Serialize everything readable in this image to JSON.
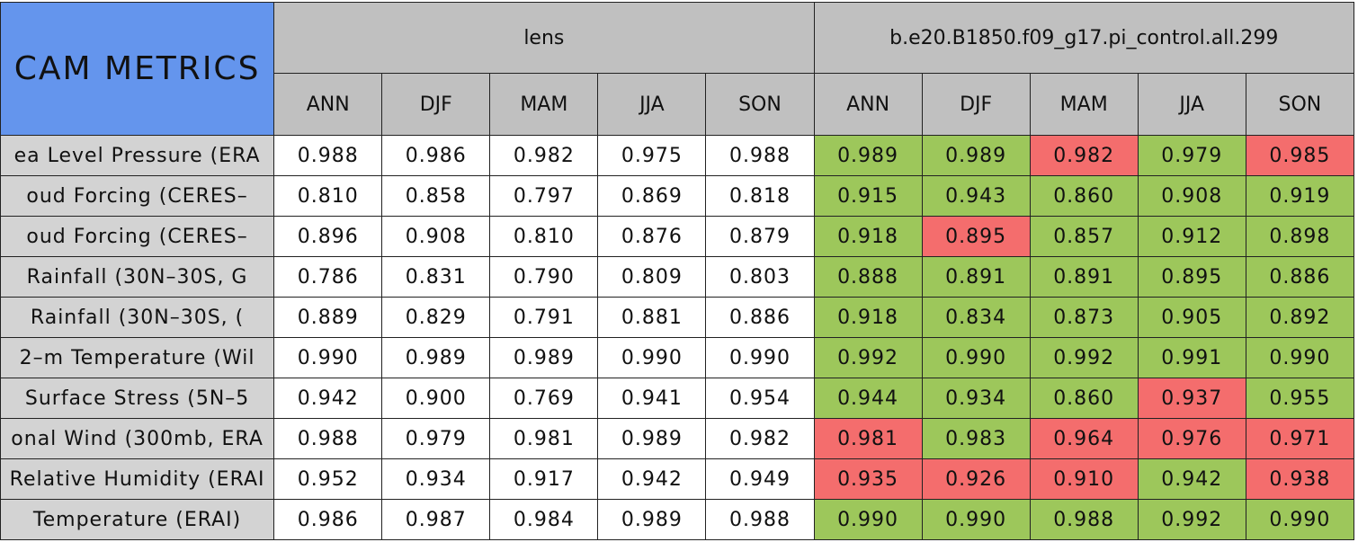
{
  "header": {
    "title": "CAM METRICS",
    "groups": [
      {
        "name": "lens",
        "seasons": [
          "ANN",
          "DJF",
          "MAM",
          "JJA",
          "SON"
        ]
      },
      {
        "name": "b.e20.B1850.f09_g17.pi_control.all.299",
        "seasons": [
          "ANN",
          "DJF",
          "MAM",
          "JJA",
          "SON"
        ]
      }
    ]
  },
  "table": {
    "rows": [
      {
        "label": "ea Level Pressure (ERA",
        "values": [
          "0.988",
          "0.986",
          "0.982",
          "0.975",
          "0.988",
          "0.989",
          "0.989",
          "0.982",
          "0.979",
          "0.985"
        ],
        "colors": [
          "#ffffff",
          "#ffffff",
          "#ffffff",
          "#ffffff",
          "#ffffff",
          "#9dc75b",
          "#9dc75b",
          "#f46d6d",
          "#9dc75b",
          "#f46d6d"
        ]
      },
      {
        "label": "oud Forcing (CERES–",
        "values": [
          "0.810",
          "0.858",
          "0.797",
          "0.869",
          "0.818",
          "0.915",
          "0.943",
          "0.860",
          "0.908",
          "0.919"
        ],
        "colors": [
          "#ffffff",
          "#ffffff",
          "#ffffff",
          "#ffffff",
          "#ffffff",
          "#9dc75b",
          "#9dc75b",
          "#9dc75b",
          "#9dc75b",
          "#9dc75b"
        ]
      },
      {
        "label": "oud Forcing (CERES–",
        "values": [
          "0.896",
          "0.908",
          "0.810",
          "0.876",
          "0.879",
          "0.918",
          "0.895",
          "0.857",
          "0.912",
          "0.898"
        ],
        "colors": [
          "#ffffff",
          "#ffffff",
          "#ffffff",
          "#ffffff",
          "#ffffff",
          "#9dc75b",
          "#f46d6d",
          "#9dc75b",
          "#9dc75b",
          "#9dc75b"
        ]
      },
      {
        "label": "Rainfall (30N–30S, G",
        "values": [
          "0.786",
          "0.831",
          "0.790",
          "0.809",
          "0.803",
          "0.888",
          "0.891",
          "0.891",
          "0.895",
          "0.886"
        ],
        "colors": [
          "#ffffff",
          "#ffffff",
          "#ffffff",
          "#ffffff",
          "#ffffff",
          "#9dc75b",
          "#9dc75b",
          "#9dc75b",
          "#9dc75b",
          "#9dc75b"
        ]
      },
      {
        "label": "Rainfall (30N–30S, (",
        "values": [
          "0.889",
          "0.829",
          "0.791",
          "0.881",
          "0.886",
          "0.918",
          "0.834",
          "0.873",
          "0.905",
          "0.892"
        ],
        "colors": [
          "#ffffff",
          "#ffffff",
          "#ffffff",
          "#ffffff",
          "#ffffff",
          "#9dc75b",
          "#9dc75b",
          "#9dc75b",
          "#9dc75b",
          "#9dc75b"
        ]
      },
      {
        "label": "2–m Temperature (Wil",
        "values": [
          "0.990",
          "0.989",
          "0.989",
          "0.990",
          "0.990",
          "0.992",
          "0.990",
          "0.992",
          "0.991",
          "0.990"
        ],
        "colors": [
          "#ffffff",
          "#ffffff",
          "#ffffff",
          "#ffffff",
          "#ffffff",
          "#9dc75b",
          "#9dc75b",
          "#9dc75b",
          "#9dc75b",
          "#9dc75b"
        ]
      },
      {
        "label": "Surface Stress (5N–5",
        "values": [
          "0.942",
          "0.900",
          "0.769",
          "0.941",
          "0.954",
          "0.944",
          "0.934",
          "0.860",
          "0.937",
          "0.955"
        ],
        "colors": [
          "#ffffff",
          "#ffffff",
          "#ffffff",
          "#ffffff",
          "#ffffff",
          "#9dc75b",
          "#9dc75b",
          "#9dc75b",
          "#f46d6d",
          "#9dc75b"
        ]
      },
      {
        "label": "onal Wind (300mb, ERA",
        "values": [
          "0.988",
          "0.979",
          "0.981",
          "0.989",
          "0.982",
          "0.981",
          "0.983",
          "0.964",
          "0.976",
          "0.971"
        ],
        "colors": [
          "#ffffff",
          "#ffffff",
          "#ffffff",
          "#ffffff",
          "#ffffff",
          "#f46d6d",
          "#9dc75b",
          "#f46d6d",
          "#f46d6d",
          "#f46d6d"
        ]
      },
      {
        "label": "Relative Humidity (ERAI",
        "values": [
          "0.952",
          "0.934",
          "0.917",
          "0.942",
          "0.949",
          "0.935",
          "0.926",
          "0.910",
          "0.942",
          "0.938"
        ],
        "colors": [
          "#ffffff",
          "#ffffff",
          "#ffffff",
          "#ffffff",
          "#ffffff",
          "#f46d6d",
          "#f46d6d",
          "#f46d6d",
          "#9dc75b",
          "#f46d6d"
        ]
      },
      {
        "label": "Temperature (ERAI)",
        "values": [
          "0.986",
          "0.987",
          "0.984",
          "0.989",
          "0.988",
          "0.990",
          "0.990",
          "0.988",
          "0.992",
          "0.990"
        ],
        "colors": [
          "#ffffff",
          "#ffffff",
          "#ffffff",
          "#ffffff",
          "#ffffff",
          "#9dc75b",
          "#9dc75b",
          "#9dc75b",
          "#9dc75b",
          "#9dc75b"
        ]
      }
    ]
  }
}
